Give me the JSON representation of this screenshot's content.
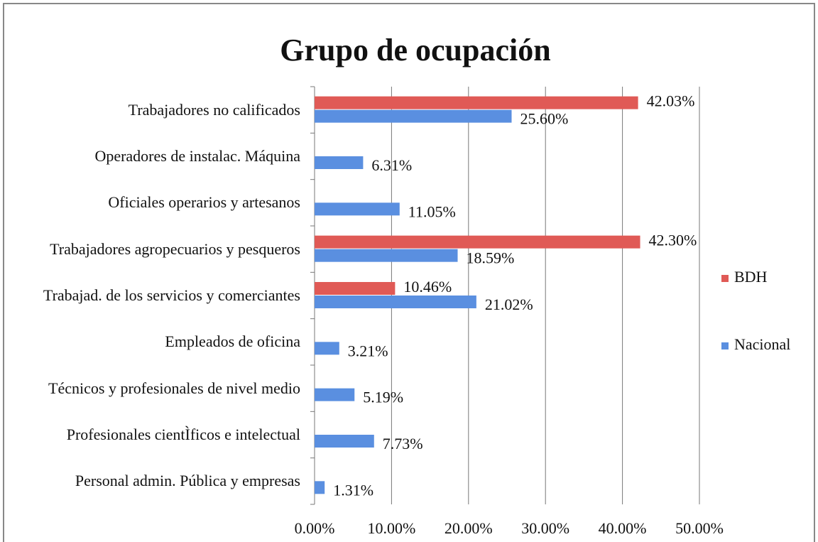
{
  "chart_data": {
    "type": "bar",
    "orientation": "horizontal",
    "title": "Grupo de ocupación",
    "categories": [
      "Trabajadores no calificados",
      "Operadores de instalac. Máquina",
      "Oficiales operarios y artesanos",
      "Trabajadores agropecuarios y pesqueros",
      "Trabajad. de los servicios y comerciantes",
      "Empleados de oficina",
      "Técnicos y profesionales de nivel medio",
      "Profesionales cientÌficos e intelectual",
      "Personal admin. Pública y empresas"
    ],
    "series": [
      {
        "name": "BDH",
        "color": "#e05a56",
        "values": [
          42.03,
          null,
          null,
          42.3,
          10.46,
          null,
          null,
          null,
          null
        ],
        "value_labels": [
          "42.03%",
          null,
          null,
          "42.30%",
          "10.46%",
          null,
          null,
          null,
          null
        ]
      },
      {
        "name": "Nacional",
        "color": "#5a8fe0",
        "values": [
          25.6,
          6.31,
          11.05,
          18.59,
          21.02,
          3.21,
          5.19,
          7.73,
          1.31
        ],
        "value_labels": [
          "25.60%",
          "6.31%",
          "11.05%",
          "18.59%",
          "21.02%",
          "3.21%",
          "5.19%",
          "7.73%",
          "1.31%"
        ]
      }
    ],
    "xlim": [
      0,
      50
    ],
    "xticks": [
      {
        "value": 0,
        "label": "0.00%"
      },
      {
        "value": 10,
        "label": "10.00%"
      },
      {
        "value": 20,
        "label": "20.00%"
      },
      {
        "value": 30,
        "label": "30.00%"
      },
      {
        "value": 40,
        "label": "40.00%"
      },
      {
        "value": 50,
        "label": "50.00%"
      }
    ],
    "grid": true,
    "legend": "right"
  }
}
